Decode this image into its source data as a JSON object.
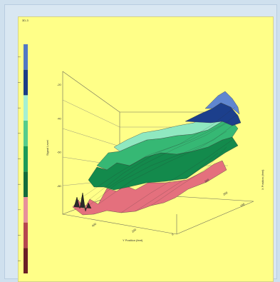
{
  "panel": {
    "title": "3D-3"
  },
  "chart_data": {
    "type": "surface",
    "title": "",
    "xlabel": "Y Position (feet)",
    "ylabel": "X Position (feet)",
    "zlabel": "Signal Level",
    "grid": true,
    "z_ticks": [
      "-80",
      "-60",
      "-40",
      "-20"
    ],
    "x_ticks": [
      "400",
      "200",
      "0"
    ],
    "y_ticks": [
      "300",
      "200",
      "100"
    ],
    "legend": {
      "placement": "left",
      "colors": [
        "#6b1f25",
        "#b6474f",
        "#e8909a",
        "#136c3c",
        "#1c9a58",
        "#56cc8c",
        "#a6f0d2",
        "#1c3d86",
        "#5278c4"
      ],
      "tick_labels": [
        "-20",
        "-30",
        "-40",
        "-50",
        "-60",
        "-70",
        "-80",
        "-90",
        "-100"
      ]
    }
  }
}
